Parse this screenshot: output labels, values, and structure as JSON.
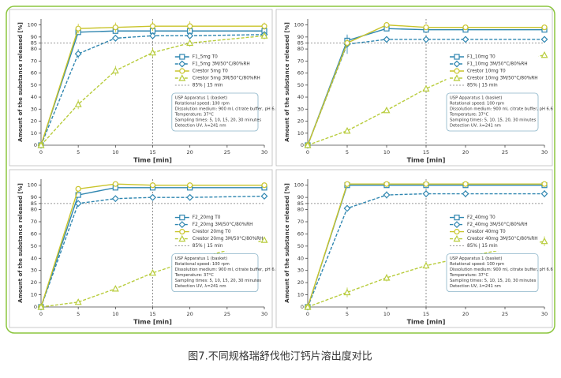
{
  "caption": "图7.不同规格瑞舒伐他汀钙片溶出度对比",
  "chart_data": [
    {
      "type": "line",
      "xlabel": "Time [min]",
      "ylabel": "Amount of the substance released [%]",
      "x": [
        0,
        5,
        10,
        15,
        20,
        30
      ],
      "xlim": [
        0,
        30
      ],
      "xticks": [
        0,
        5,
        10,
        15,
        20,
        25,
        30
      ],
      "ylim": [
        0,
        105
      ],
      "yticks": [
        0,
        10,
        20,
        30,
        40,
        50,
        60,
        70,
        80,
        85,
        90,
        100
      ],
      "ref_x": 15,
      "ref_y": 85,
      "ref_label": "85% | 15 min",
      "series": [
        {
          "name": "F1_5mg T0",
          "color": "#2f86b0",
          "dash": false,
          "marker": "square",
          "values": [
            0,
            94,
            95,
            95,
            95,
            95
          ],
          "errors": [
            0,
            2,
            2,
            2,
            2,
            2
          ]
        },
        {
          "name": "F1_5mg 3M/50°C/80%RH",
          "color": "#2f86b0",
          "dash": true,
          "marker": "diamond",
          "values": [
            0,
            76,
            89,
            91,
            91,
            92
          ],
          "errors": [
            0,
            4,
            2,
            2,
            2,
            2
          ]
        },
        {
          "name": "Crestor 5mg T0",
          "color": "#c9c42a",
          "dash": false,
          "marker": "circle",
          "values": [
            0,
            97,
            98,
            99,
            99,
            99
          ],
          "errors": [
            0,
            4,
            4,
            4,
            4,
            3
          ]
        },
        {
          "name": "Crestor 5mg 3M/50°C/80%RH",
          "color": "#b8cc3c",
          "dash": true,
          "marker": "triangle",
          "values": [
            0,
            34,
            62,
            77,
            85,
            91
          ],
          "errors": [
            0,
            4,
            4,
            4,
            3,
            3
          ]
        }
      ],
      "notes": [
        "USP Apparatus 1 (basket)",
        "Rotational speed: 100 rpm",
        "Dissolution medium: 900 ml, citrate buffer, pH 6.6",
        "Temperature: 37°C",
        "Sampling times: 5, 10, 15, 20, 30 minutes",
        "Detection UV, λ=241 nm"
      ]
    },
    {
      "type": "line",
      "xlabel": "Time [min]",
      "ylabel": "Amount of the substance released [%]",
      "x": [
        0,
        5,
        10,
        15,
        20,
        30
      ],
      "xlim": [
        0,
        30
      ],
      "xticks": [
        0,
        5,
        10,
        15,
        20,
        25,
        30
      ],
      "ylim": [
        0,
        105
      ],
      "yticks": [
        0,
        10,
        20,
        30,
        40,
        50,
        60,
        70,
        80,
        85,
        90,
        100
      ],
      "ref_x": 15,
      "ref_y": 85,
      "ref_label": "85% | 15 min",
      "series": [
        {
          "name": "F1_10mg T0",
          "color": "#2f86b0",
          "dash": false,
          "marker": "square",
          "values": [
            0,
            87,
            97,
            96,
            96,
            96
          ],
          "errors": [
            0,
            4,
            2,
            2,
            2,
            2
          ]
        },
        {
          "name": "F1_10mg 3M/50°C/80%RH",
          "color": "#2f86b0",
          "dash": true,
          "marker": "diamond",
          "values": [
            0,
            84,
            88,
            88,
            88,
            88
          ],
          "errors": [
            0,
            8,
            2,
            2,
            2,
            2
          ]
        },
        {
          "name": "Crestor 10mg T0",
          "color": "#c9c42a",
          "dash": false,
          "marker": "circle",
          "values": [
            0,
            85,
            100,
            98,
            98,
            98
          ],
          "errors": [
            0,
            3,
            2,
            2,
            2,
            2
          ]
        },
        {
          "name": "Crestor 10mg 3M/50°C/80%RH",
          "color": "#b8cc3c",
          "dash": true,
          "marker": "triangle",
          "values": [
            0,
            12,
            29,
            47,
            62,
            75
          ],
          "errors": [
            0,
            2,
            2,
            2,
            2,
            1
          ]
        }
      ],
      "notes": [
        "USP Apparatus 1 (basket)",
        "Rotational speed: 100 rpm",
        "Dissolution medium: 900 ml, citrate buffer, pH 6.6",
        "Temperature: 37°C",
        "Sampling times: 5, 10, 15, 20, 30 minutes",
        "Detection UV, λ=241 nm"
      ]
    },
    {
      "type": "line",
      "xlabel": "Time [min]",
      "ylabel": "Amount of the substance released [%]",
      "x": [
        0,
        5,
        10,
        15,
        20,
        30
      ],
      "xlim": [
        0,
        30
      ],
      "xticks": [
        0,
        5,
        10,
        15,
        20,
        25,
        30
      ],
      "ylim": [
        0,
        105
      ],
      "yticks": [
        0,
        10,
        20,
        30,
        40,
        50,
        60,
        70,
        80,
        85,
        90,
        100
      ],
      "ref_x": 15,
      "ref_y": 85,
      "ref_label": "85% | 15 min",
      "series": [
        {
          "name": "F2_20mg T0",
          "color": "#2f86b0",
          "dash": false,
          "marker": "square",
          "values": [
            0,
            92,
            98,
            98,
            98,
            98
          ],
          "errors": [
            0,
            2,
            2,
            2,
            2,
            2
          ]
        },
        {
          "name": "F2_20mg 3M/50°C/80%RH",
          "color": "#2f86b0",
          "dash": true,
          "marker": "diamond",
          "values": [
            0,
            85,
            89,
            90,
            90,
            91
          ],
          "errors": [
            0,
            2,
            2,
            2,
            2,
            2
          ]
        },
        {
          "name": "Crestor 20mg T0",
          "color": "#c9c42a",
          "dash": false,
          "marker": "circle",
          "values": [
            0,
            97,
            101,
            100,
            100,
            100
          ],
          "errors": [
            0,
            2,
            1,
            1,
            1,
            1
          ]
        },
        {
          "name": "Crestor 20mg 3M/50°C/80%RH",
          "color": "#b8cc3c",
          "dash": true,
          "marker": "triangle",
          "values": [
            0,
            4,
            15,
            28,
            38,
            55
          ],
          "errors": [
            0,
            1,
            1,
            1,
            1,
            1
          ]
        }
      ],
      "notes": [
        "USP Apparatus 1 (basket)",
        "Rotational speed: 100 rpm",
        "Dissolution medium: 900 ml, citrate buffer, pH 6.6",
        "Temperature: 37°C",
        "Sampling times: 5, 10, 15, 20, 30 minutes",
        "Detection UV, λ=241 nm"
      ]
    },
    {
      "type": "line",
      "xlabel": "Time [min]",
      "ylabel": "Amount of the substance released [%]",
      "x": [
        0,
        5,
        10,
        15,
        20,
        30
      ],
      "xlim": [
        0,
        30
      ],
      "xticks": [
        0,
        5,
        10,
        15,
        20,
        25,
        30
      ],
      "ylim": [
        0,
        105
      ],
      "yticks": [
        0,
        10,
        20,
        30,
        40,
        50,
        60,
        70,
        80,
        85,
        90,
        100
      ],
      "ref_x": 15,
      "ref_y": 85,
      "ref_label": "85% | 15 min",
      "series": [
        {
          "name": "F2_40mg T0",
          "color": "#2f86b0",
          "dash": false,
          "marker": "square",
          "values": [
            0,
            100,
            100,
            100,
            100,
            100
          ],
          "errors": [
            0,
            2,
            2,
            2,
            2,
            2
          ]
        },
        {
          "name": "F2_40mg 3M/50°C/80%RH",
          "color": "#2f86b0",
          "dash": true,
          "marker": "diamond",
          "values": [
            0,
            81,
            92,
            93,
            93,
            93
          ],
          "errors": [
            0,
            2,
            3,
            3,
            3,
            3
          ]
        },
        {
          "name": "Crestor 40mg T0",
          "color": "#c9c42a",
          "dash": false,
          "marker": "circle",
          "values": [
            0,
            101,
            101,
            101,
            101,
            101
          ],
          "errors": [
            0,
            1,
            1,
            1,
            1,
            1
          ]
        },
        {
          "name": "Crestor 40mg 3M/50°C/80%RH",
          "color": "#b8cc3c",
          "dash": true,
          "marker": "triangle",
          "values": [
            0,
            12,
            24,
            34,
            41,
            54
          ],
          "errors": [
            0,
            4,
            3,
            3,
            3,
            4
          ]
        }
      ],
      "notes": [
        "USP Apparatus 1 (basket)",
        "Rotational speed: 100 rpm",
        "Dissolution medium: 900 ml, citrate buffer, pH 6.6",
        "Temperature: 37°C",
        "Sampling times: 5, 10, 15, 20, 30 minutes",
        "Detection UV, λ=241 nm"
      ]
    }
  ]
}
